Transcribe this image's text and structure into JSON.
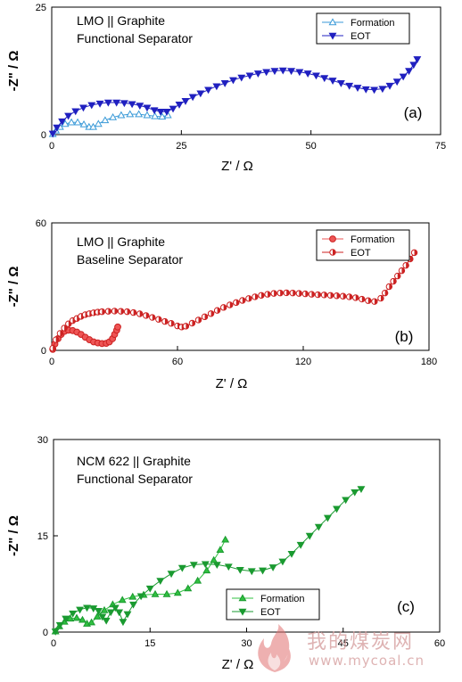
{
  "watermark": {
    "cn": "我的煤炭网",
    "url": "www.mycoal.cn"
  },
  "chart_data": [
    {
      "type": "scatter",
      "panel_label": "(a)",
      "annotation": [
        "LMO || Graphite",
        "Functional Separator"
      ],
      "xlabel": "Z' / Ω",
      "ylabel": "-Z\" / Ω",
      "xlim": [
        0,
        75
      ],
      "ylim": [
        0,
        25
      ],
      "xticks": [
        0,
        25,
        50,
        75
      ],
      "yticks": [
        0,
        25
      ],
      "color": "#2020c0",
      "light_color": "#3a9ad8",
      "legend_position": "top-right",
      "series": [
        {
          "name": "Formation",
          "marker": "triangle-up",
          "style": "open",
          "x": [
            0.2,
            0.8,
            1.6,
            2.6,
            3.8,
            5.0,
            6.2,
            7.2,
            8.0,
            9.0,
            10.3,
            11.8,
            13.4,
            15.1,
            16.8,
            18.4,
            19.9,
            21.3,
            22.4
          ],
          "y": [
            0.1,
            0.8,
            1.5,
            2.1,
            2.4,
            2.4,
            2.0,
            1.5,
            1.5,
            2.1,
            2.8,
            3.4,
            3.8,
            4.0,
            4.0,
            3.8,
            3.6,
            3.5,
            3.8
          ]
        },
        {
          "name": "EOT",
          "marker": "triangle-down",
          "style": "filled",
          "x": [
            0.2,
            1.0,
            2.0,
            3.2,
            4.6,
            6.1,
            7.7,
            9.3,
            10.9,
            12.5,
            14.0,
            15.5,
            17.0,
            18.4,
            19.8,
            21.0,
            22.2,
            23.4,
            24.6,
            25.8,
            27.2,
            28.7,
            30.2,
            31.8,
            33.4,
            35.0,
            36.6,
            38.2,
            39.8,
            41.4,
            43.0,
            44.6,
            46.2,
            47.8,
            49.4,
            51.0,
            52.6,
            54.2,
            55.8,
            57.4,
            59.0,
            60.6,
            62.2,
            63.8,
            65.2,
            66.6,
            67.8,
            68.9,
            69.8,
            70.5
          ],
          "y": [
            0.2,
            1.4,
            2.6,
            3.7,
            4.6,
            5.3,
            5.8,
            6.1,
            6.3,
            6.3,
            6.2,
            6.0,
            5.7,
            5.3,
            4.8,
            4.5,
            4.5,
            5.1,
            5.9,
            6.6,
            7.4,
            8.1,
            8.8,
            9.5,
            10.1,
            10.7,
            11.2,
            11.6,
            12.0,
            12.3,
            12.5,
            12.6,
            12.5,
            12.3,
            12.0,
            11.6,
            11.1,
            10.6,
            10.1,
            9.6,
            9.2,
            8.9,
            8.8,
            9.0,
            9.6,
            10.4,
            11.4,
            12.5,
            13.7,
            14.8
          ]
        }
      ]
    },
    {
      "type": "scatter",
      "panel_label": "(b)",
      "annotation": [
        "LMO || Graphite",
        "Baseline Separator"
      ],
      "xlabel": "Z' / Ω",
      "ylabel": "-Z\" / Ω",
      "xlim": [
        0,
        180
      ],
      "ylim": [
        0,
        60
      ],
      "xticks": [
        0,
        60,
        120,
        180
      ],
      "yticks": [
        0,
        60
      ],
      "color": "#cc2222",
      "light_color": "#ee5555",
      "legend_position": "top-right",
      "series": [
        {
          "name": "Formation",
          "marker": "circle",
          "style": "filled-light",
          "x": [
            0.5,
            1.5,
            3.0,
            4.5,
            6.2,
            8.0,
            10.0,
            12.0,
            14.0,
            16.0,
            18.0,
            20.0,
            22.0,
            24.0,
            26.0,
            27.5,
            29.0,
            30.0,
            31.0,
            31.5
          ],
          "y": [
            0.5,
            3.0,
            5.5,
            7.5,
            9.0,
            9.5,
            9.3,
            8.6,
            7.5,
            6.2,
            5.0,
            4.0,
            3.5,
            3.2,
            3.3,
            4.0,
            5.5,
            7.5,
            9.5,
            11.0
          ]
        },
        {
          "name": "EOT",
          "marker": "circle",
          "style": "half-filled",
          "x": [
            0.5,
            2,
            4,
            6,
            8,
            10,
            12,
            14,
            16,
            18,
            20,
            22,
            24,
            27,
            30,
            33,
            36,
            39,
            42,
            45,
            48,
            51,
            54,
            57,
            60,
            62,
            64,
            67,
            70,
            73,
            76,
            79,
            82,
            85,
            88,
            91,
            94,
            97,
            100,
            103,
            106,
            109,
            112,
            115,
            118,
            121,
            124,
            127,
            130,
            133,
            136,
            139,
            142,
            145,
            148,
            151,
            154,
            157,
            159,
            161,
            163,
            165,
            167,
            169,
            171,
            173
          ],
          "y": [
            1,
            5,
            8,
            10.5,
            12.5,
            14,
            15,
            16,
            16.8,
            17.3,
            17.7,
            18,
            18.2,
            18.4,
            18.5,
            18.4,
            18.2,
            17.8,
            17.2,
            16.4,
            15.5,
            14.6,
            13.6,
            12.7,
            11.5,
            11.0,
            11.4,
            12.8,
            14.3,
            15.8,
            17.3,
            18.8,
            20.2,
            21.4,
            22.5,
            23.5,
            24.4,
            25.2,
            25.9,
            26.4,
            26.8,
            27.0,
            27.1,
            27.0,
            26.8,
            26.6,
            26.4,
            26.2,
            26.1,
            25.9,
            25.7,
            25.5,
            25.2,
            24.8,
            24.1,
            23.4,
            23.0,
            24.5,
            27,
            30,
            32.5,
            35,
            37.5,
            40,
            43,
            46
          ]
        }
      ]
    },
    {
      "type": "scatter",
      "panel_label": "(c)",
      "annotation": [
        "NCM 622 || Graphite",
        "Functional Separator"
      ],
      "xlabel": "Z' / Ω",
      "ylabel": "-Z\" / Ω",
      "xlim": [
        0,
        60
      ],
      "ylim": [
        0,
        30
      ],
      "xticks": [
        0,
        15,
        30,
        45,
        60
      ],
      "yticks": [
        0,
        15,
        30
      ],
      "color": "#1a9a30",
      "light_color": "#30c040",
      "legend_position": "lower-middle",
      "series": [
        {
          "name": "Formation",
          "marker": "triangle-up",
          "style": "filled-light",
          "x": [
            0.3,
            0.9,
            1.7,
            2.6,
            3.6,
            4.5,
            5.2,
            5.9,
            6.8,
            7.9,
            9.2,
            10.7,
            12.3,
            14.0,
            15.8,
            17.6,
            19.3,
            20.9,
            22.4,
            23.8,
            24.9,
            25.9,
            26.7
          ],
          "y": [
            0.1,
            0.9,
            1.6,
            2.1,
            2.2,
            1.9,
            1.3,
            1.5,
            2.4,
            3.4,
            4.3,
            5.0,
            5.5,
            5.8,
            5.9,
            5.9,
            6.1,
            6.8,
            8.0,
            9.6,
            11.2,
            12.8,
            14.4
          ]
        },
        {
          "name": "EOT",
          "marker": "triangle-down",
          "style": "filled",
          "x": [
            0.3,
            1.0,
            1.9,
            3.0,
            4.1,
            5.2,
            6.2,
            7.0,
            7.6,
            8.2,
            8.9,
            9.6,
            10.2,
            10.8,
            11.5,
            12.4,
            13.6,
            15.0,
            16.6,
            18.3,
            20.0,
            21.8,
            23.6,
            25.4,
            27.2,
            29.0,
            30.8,
            32.5,
            34.1,
            35.6,
            37.0,
            38.4,
            39.8,
            41.2,
            42.6,
            44.0,
            45.4,
            46.8,
            47.8
          ],
          "y": [
            0.1,
            1.1,
            2.1,
            2.9,
            3.5,
            3.8,
            3.7,
            3.3,
            2.4,
            1.8,
            3.1,
            3.8,
            3.1,
            1.6,
            2.8,
            4.3,
            5.6,
            6.8,
            8.0,
            9.1,
            10.0,
            10.5,
            10.6,
            10.5,
            10.2,
            9.7,
            9.5,
            9.6,
            10.1,
            11.0,
            12.2,
            13.6,
            15.0,
            16.4,
            17.8,
            19.2,
            20.6,
            21.8,
            22.3
          ]
        }
      ]
    }
  ]
}
